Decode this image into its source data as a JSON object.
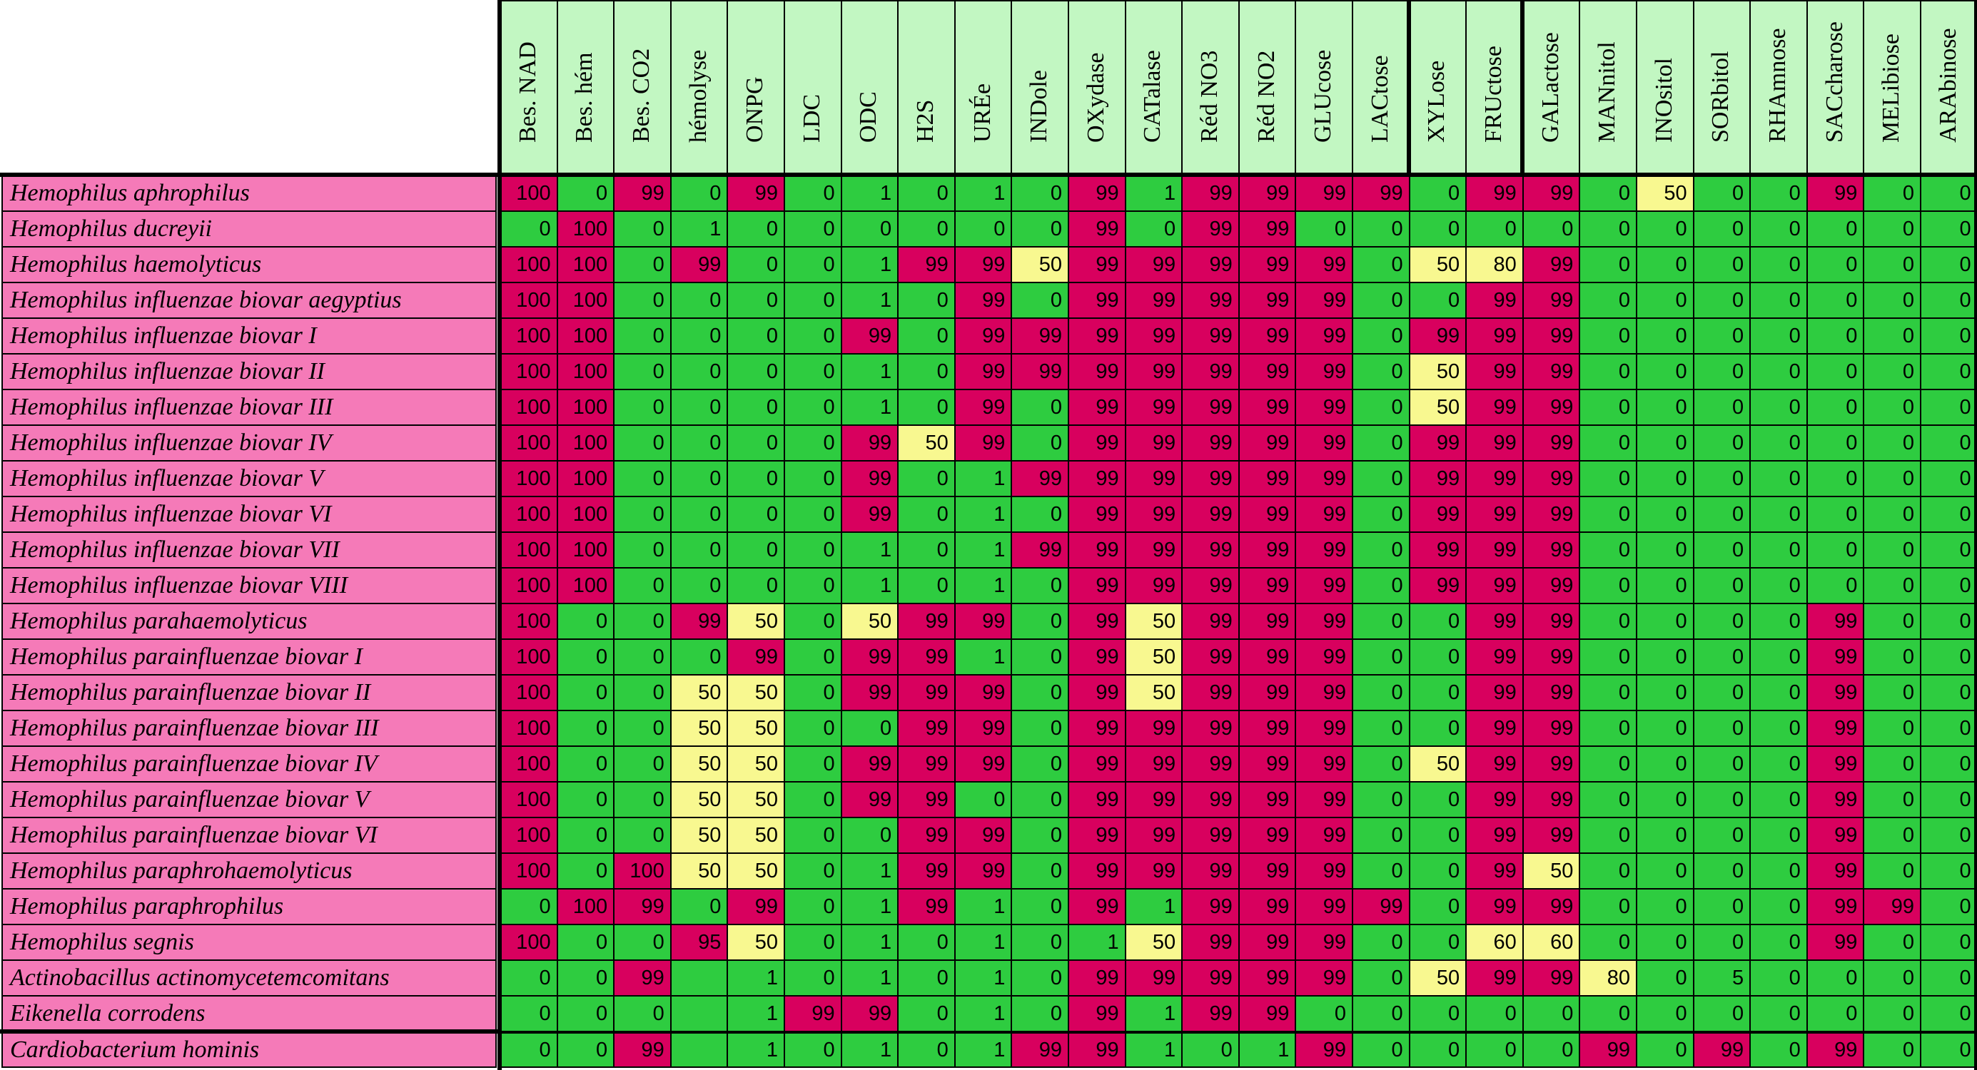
{
  "columns": [
    "Bes. NAD",
    "Bes. hém",
    "Bes. CO2",
    "hémolyse",
    "ONPG",
    "LDC",
    "ODC",
    "H2S",
    "URÉe",
    "INDole",
    "OXydase",
    "CATalase",
    "Réd NO3",
    "Réd NO2",
    "GLUcose",
    "LACtose",
    "XYLose",
    "FRUctose",
    "GALactose",
    "MANnitol",
    "INOsitol",
    "SORbitol",
    "RHAmnose",
    "SACcharose",
    "MELibiose",
    "ARAbinose"
  ],
  "colors": {
    "red": "#d8005e",
    "green": "#2ecc40",
    "yellow": "#f8f890",
    "header": "#c2f7c2",
    "name": "#f57ab8"
  },
  "rows": [
    {
      "name": "Hemophilus aphrophilus",
      "values": [
        "100",
        "0",
        "99",
        "0",
        "99",
        "0",
        "1",
        "0",
        "1",
        "0",
        "99",
        "1",
        "99",
        "99",
        "99",
        "99",
        "0",
        "99",
        "99",
        "0",
        "50",
        "0",
        "0",
        "99",
        "0",
        "0"
      ]
    },
    {
      "name": "Hemophilus ducreyii",
      "values": [
        "0",
        "100",
        "0",
        "1",
        "0",
        "0",
        "0",
        "0",
        "0",
        "0",
        "99",
        "0",
        "99",
        "99",
        "0",
        "0",
        "0",
        "0",
        "0",
        "0",
        "0",
        "0",
        "0",
        "0",
        "0",
        "0"
      ]
    },
    {
      "name": "Hemophilus haemolyticus",
      "values": [
        "100",
        "100",
        "0",
        "99",
        "0",
        "0",
        "1",
        "99",
        "99",
        "50",
        "99",
        "99",
        "99",
        "99",
        "99",
        "0",
        "50",
        "80",
        "99",
        "0",
        "0",
        "0",
        "0",
        "0",
        "0",
        "0"
      ]
    },
    {
      "name": "Hemophilus influenzae biovar aegyptius",
      "values": [
        "100",
        "100",
        "0",
        "0",
        "0",
        "0",
        "1",
        "0",
        "99",
        "0",
        "99",
        "99",
        "99",
        "99",
        "99",
        "0",
        "0",
        "99",
        "99",
        "0",
        "0",
        "0",
        "0",
        "0",
        "0",
        "0"
      ]
    },
    {
      "name": "Hemophilus influenzae biovar I",
      "values": [
        "100",
        "100",
        "0",
        "0",
        "0",
        "0",
        "99",
        "0",
        "99",
        "99",
        "99",
        "99",
        "99",
        "99",
        "99",
        "0",
        "99",
        "99",
        "99",
        "0",
        "0",
        "0",
        "0",
        "0",
        "0",
        "0"
      ]
    },
    {
      "name": "Hemophilus influenzae biovar II",
      "values": [
        "100",
        "100",
        "0",
        "0",
        "0",
        "0",
        "1",
        "0",
        "99",
        "99",
        "99",
        "99",
        "99",
        "99",
        "99",
        "0",
        "50",
        "99",
        "99",
        "0",
        "0",
        "0",
        "0",
        "0",
        "0",
        "0"
      ]
    },
    {
      "name": "Hemophilus influenzae biovar III",
      "values": [
        "100",
        "100",
        "0",
        "0",
        "0",
        "0",
        "1",
        "0",
        "99",
        "0",
        "99",
        "99",
        "99",
        "99",
        "99",
        "0",
        "50",
        "99",
        "99",
        "0",
        "0",
        "0",
        "0",
        "0",
        "0",
        "0"
      ]
    },
    {
      "name": "Hemophilus influenzae biovar IV",
      "values": [
        "100",
        "100",
        "0",
        "0",
        "0",
        "0",
        "99",
        "50",
        "99",
        "0",
        "99",
        "99",
        "99",
        "99",
        "99",
        "0",
        "99",
        "99",
        "99",
        "0",
        "0",
        "0",
        "0",
        "0",
        "0",
        "0"
      ]
    },
    {
      "name": "Hemophilus influenzae biovar V",
      "values": [
        "100",
        "100",
        "0",
        "0",
        "0",
        "0",
        "99",
        "0",
        "1",
        "99",
        "99",
        "99",
        "99",
        "99",
        "99",
        "0",
        "99",
        "99",
        "99",
        "0",
        "0",
        "0",
        "0",
        "0",
        "0",
        "0"
      ]
    },
    {
      "name": "Hemophilus influenzae biovar VI",
      "values": [
        "100",
        "100",
        "0",
        "0",
        "0",
        "0",
        "99",
        "0",
        "1",
        "0",
        "99",
        "99",
        "99",
        "99",
        "99",
        "0",
        "99",
        "99",
        "99",
        "0",
        "0",
        "0",
        "0",
        "0",
        "0",
        "0"
      ]
    },
    {
      "name": "Hemophilus influenzae biovar VII",
      "values": [
        "100",
        "100",
        "0",
        "0",
        "0",
        "0",
        "1",
        "0",
        "1",
        "99",
        "99",
        "99",
        "99",
        "99",
        "99",
        "0",
        "99",
        "99",
        "99",
        "0",
        "0",
        "0",
        "0",
        "0",
        "0",
        "0"
      ]
    },
    {
      "name": "Hemophilus influenzae biovar VIII",
      "values": [
        "100",
        "100",
        "0",
        "0",
        "0",
        "0",
        "1",
        "0",
        "1",
        "0",
        "99",
        "99",
        "99",
        "99",
        "99",
        "0",
        "99",
        "99",
        "99",
        "0",
        "0",
        "0",
        "0",
        "0",
        "0",
        "0"
      ]
    },
    {
      "name": "Hemophilus parahaemolyticus",
      "values": [
        "100",
        "0",
        "0",
        "99",
        "50",
        "0",
        "50",
        "99",
        "99",
        "0",
        "99",
        "50",
        "99",
        "99",
        "99",
        "0",
        "0",
        "99",
        "99",
        "0",
        "0",
        "0",
        "0",
        "99",
        "0",
        "0"
      ]
    },
    {
      "name": "Hemophilus parainfluenzae biovar I",
      "values": [
        "100",
        "0",
        "0",
        "0",
        "99",
        "0",
        "99",
        "99",
        "1",
        "0",
        "99",
        "50",
        "99",
        "99",
        "99",
        "0",
        "0",
        "99",
        "99",
        "0",
        "0",
        "0",
        "0",
        "99",
        "0",
        "0"
      ]
    },
    {
      "name": "Hemophilus parainfluenzae biovar II",
      "values": [
        "100",
        "0",
        "0",
        "50",
        "50",
        "0",
        "99",
        "99",
        "99",
        "0",
        "99",
        "50",
        "99",
        "99",
        "99",
        "0",
        "0",
        "99",
        "99",
        "0",
        "0",
        "0",
        "0",
        "99",
        "0",
        "0"
      ]
    },
    {
      "name": "Hemophilus parainfluenzae biovar III",
      "values": [
        "100",
        "0",
        "0",
        "50",
        "50",
        "0",
        "0",
        "99",
        "99",
        "0",
        "99",
        "99",
        "99",
        "99",
        "99",
        "0",
        "0",
        "99",
        "99",
        "0",
        "0",
        "0",
        "0",
        "99",
        "0",
        "0"
      ]
    },
    {
      "name": "Hemophilus parainfluenzae biovar IV",
      "values": [
        "100",
        "0",
        "0",
        "50",
        "50",
        "0",
        "99",
        "99",
        "99",
        "0",
        "99",
        "99",
        "99",
        "99",
        "99",
        "0",
        "50",
        "99",
        "99",
        "0",
        "0",
        "0",
        "0",
        "99",
        "0",
        "0"
      ]
    },
    {
      "name": "Hemophilus parainfluenzae biovar V",
      "values": [
        "100",
        "0",
        "0",
        "50",
        "50",
        "0",
        "99",
        "99",
        "0",
        "0",
        "99",
        "99",
        "99",
        "99",
        "99",
        "0",
        "0",
        "99",
        "99",
        "0",
        "0",
        "0",
        "0",
        "99",
        "0",
        "0"
      ]
    },
    {
      "name": "Hemophilus parainfluenzae biovar VI",
      "values": [
        "100",
        "0",
        "0",
        "50",
        "50",
        "0",
        "0",
        "99",
        "99",
        "0",
        "99",
        "99",
        "99",
        "99",
        "99",
        "0",
        "0",
        "99",
        "99",
        "0",
        "0",
        "0",
        "0",
        "99",
        "0",
        "0"
      ]
    },
    {
      "name": "Hemophilus paraphrohaemolyticus",
      "values": [
        "100",
        "0",
        "100",
        "50",
        "50",
        "0",
        "1",
        "99",
        "99",
        "0",
        "99",
        "99",
        "99",
        "99",
        "99",
        "0",
        "0",
        "99",
        "50",
        "0",
        "0",
        "0",
        "0",
        "99",
        "0",
        "0"
      ]
    },
    {
      "name": "Hemophilus paraphrophilus",
      "values": [
        "0",
        "100",
        "99",
        "0",
        "99",
        "0",
        "1",
        "99",
        "1",
        "0",
        "99",
        "1",
        "99",
        "99",
        "99",
        "99",
        "0",
        "99",
        "99",
        "0",
        "0",
        "0",
        "0",
        "99",
        "99",
        "0"
      ]
    },
    {
      "name": "Hemophilus segnis",
      "values": [
        "100",
        "0",
        "0",
        "95",
        "50",
        "0",
        "1",
        "0",
        "1",
        "0",
        "1",
        "50",
        "99",
        "99",
        "99",
        "0",
        "0",
        "60",
        "60",
        "0",
        "0",
        "0",
        "0",
        "99",
        "0",
        "0"
      ]
    },
    {
      "name": "Actinobacillus actinomycetemcomitans",
      "values": [
        "0",
        "0",
        "99",
        "",
        "1",
        "0",
        "1",
        "0",
        "1",
        "0",
        "99",
        "99",
        "99",
        "99",
        "99",
        "0",
        "50",
        "99",
        "99",
        "80",
        "0",
        "5",
        "0",
        "0",
        "0",
        "0"
      ]
    },
    {
      "name": "Eikenella corrodens",
      "values": [
        "0",
        "0",
        "0",
        "",
        "1",
        "99",
        "99",
        "0",
        "1",
        "0",
        "99",
        "1",
        "99",
        "99",
        "0",
        "0",
        "0",
        "0",
        "0",
        "0",
        "0",
        "0",
        "0",
        "0",
        "0",
        "0"
      ]
    },
    {
      "name": "Cardiobacterium hominis",
      "values": [
        "0",
        "0",
        "99",
        "",
        "1",
        "0",
        "1",
        "0",
        "1",
        "99",
        "99",
        "1",
        "0",
        "1",
        "99",
        "0",
        "0",
        "0",
        "0",
        "99",
        "0",
        "99",
        "0",
        "99",
        "0",
        "0"
      ]
    }
  ]
}
